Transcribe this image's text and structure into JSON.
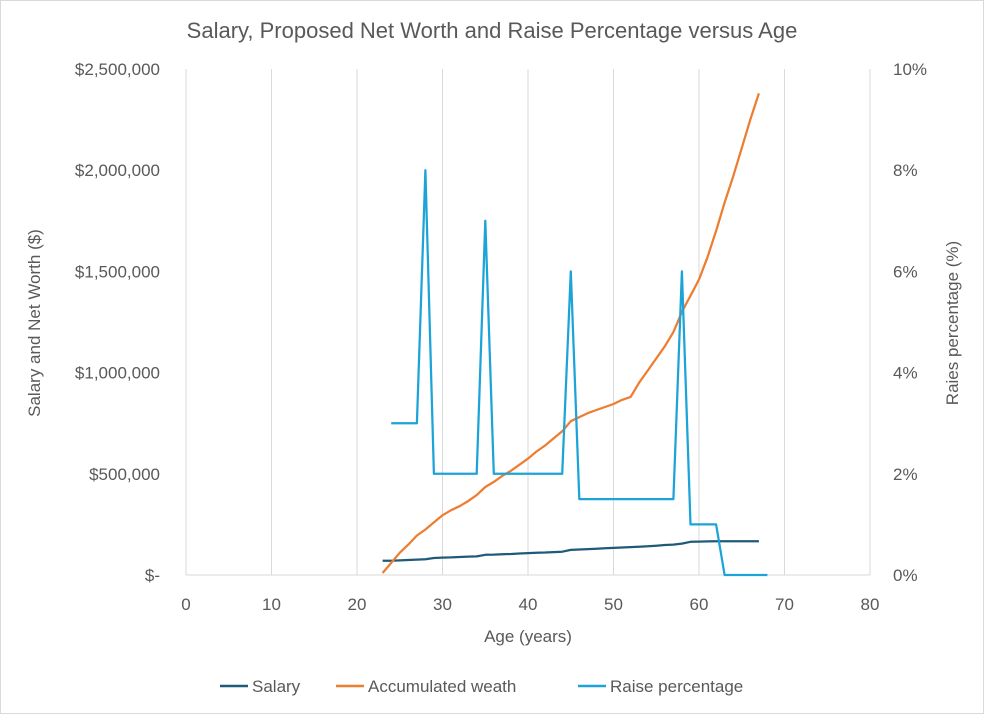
{
  "chart_data": {
    "type": "line",
    "title": "Salary, Proposed Net Worth and Raise Percentage versus Age",
    "xlabel": "Age (years)",
    "ylabel_left": "Salary and Net Worth ($)",
    "ylabel_right": "Raies percentage (%)",
    "xlim": [
      0,
      80
    ],
    "ylim_left": [
      0,
      2500000
    ],
    "ylim_right": [
      0,
      10
    ],
    "x_ticks": [
      "0",
      "10",
      "20",
      "30",
      "40",
      "50",
      "60",
      "70",
      "80"
    ],
    "y_left_ticks": [
      "$-",
      "$500,000",
      "$1,000,000",
      "$1,500,000",
      "$2,000,000",
      "$2,500,000"
    ],
    "y_right_ticks": [
      "0%",
      "2%",
      "4%",
      "6%",
      "8%",
      "10%"
    ],
    "grid": "vertical",
    "legend_position": "bottom",
    "colors": {
      "salary": "#1f5a7a",
      "wealth": "#ed7d31",
      "raise": "#1ca3d8",
      "grid": "#d9d9d9",
      "text": "#595959"
    },
    "series": [
      {
        "name": "Salary",
        "axis": "left",
        "x": [
          23,
          24,
          25,
          26,
          27,
          28,
          29,
          30,
          31,
          32,
          33,
          34,
          35,
          36,
          37,
          38,
          39,
          40,
          41,
          42,
          43,
          44,
          45,
          46,
          47,
          48,
          49,
          50,
          51,
          52,
          53,
          54,
          55,
          56,
          57,
          58,
          59,
          60,
          61,
          62,
          63,
          64,
          65,
          66,
          67
        ],
        "y": [
          70000,
          70000,
          72000,
          74000,
          76000,
          78000,
          84000,
          86000,
          87000,
          89000,
          91000,
          92000,
          100000,
          101000,
          103000,
          104000,
          106000,
          108000,
          110000,
          111000,
          113000,
          115000,
          124000,
          126000,
          128000,
          130000,
          132000,
          134000,
          136000,
          138000,
          140000,
          142000,
          145000,
          148000,
          150000,
          155000,
          164000,
          165000,
          166000,
          167000,
          167000,
          167000,
          167000,
          167000,
          167000
        ]
      },
      {
        "name": "Accumulated weath",
        "axis": "left",
        "x": [
          23,
          24,
          25,
          26,
          27,
          28,
          29,
          30,
          31,
          32,
          33,
          34,
          35,
          36,
          37,
          38,
          39,
          40,
          41,
          42,
          43,
          44,
          45,
          46,
          47,
          48,
          49,
          50,
          51,
          52,
          53,
          54,
          55,
          56,
          57,
          58,
          59,
          60,
          61,
          62,
          63,
          64,
          65,
          66,
          67
        ],
        "y": [
          10000,
          60000,
          110000,
          150000,
          195000,
          225000,
          260000,
          295000,
          320000,
          340000,
          365000,
          395000,
          435000,
          460000,
          490000,
          515000,
          545000,
          575000,
          610000,
          640000,
          675000,
          710000,
          760000,
          780000,
          800000,
          815000,
          830000,
          845000,
          865000,
          880000,
          950000,
          1010000,
          1070000,
          1130000,
          1200000,
          1300000,
          1380000,
          1460000,
          1570000,
          1700000,
          1840000,
          1970000,
          2110000,
          2250000,
          2380000
        ]
      },
      {
        "name": "Raise percentage",
        "axis": "right",
        "x": [
          24,
          25,
          26,
          27,
          28,
          29,
          30,
          31,
          32,
          33,
          34,
          35,
          36,
          37,
          38,
          39,
          40,
          41,
          42,
          43,
          44,
          45,
          46,
          47,
          48,
          49,
          50,
          51,
          52,
          53,
          54,
          55,
          56,
          57,
          58,
          59,
          60,
          61,
          62,
          63,
          64,
          65,
          66,
          67,
          68
        ],
        "y": [
          3,
          3,
          3,
          3,
          8,
          2,
          2,
          2,
          2,
          2,
          2,
          7,
          2,
          2,
          2,
          2,
          2,
          2,
          2,
          2,
          2,
          6,
          1.5,
          1.5,
          1.5,
          1.5,
          1.5,
          1.5,
          1.5,
          1.5,
          1.5,
          1.5,
          1.5,
          1.5,
          6,
          1,
          1,
          1,
          1,
          0,
          0,
          0,
          0,
          0,
          0
        ]
      }
    ]
  }
}
